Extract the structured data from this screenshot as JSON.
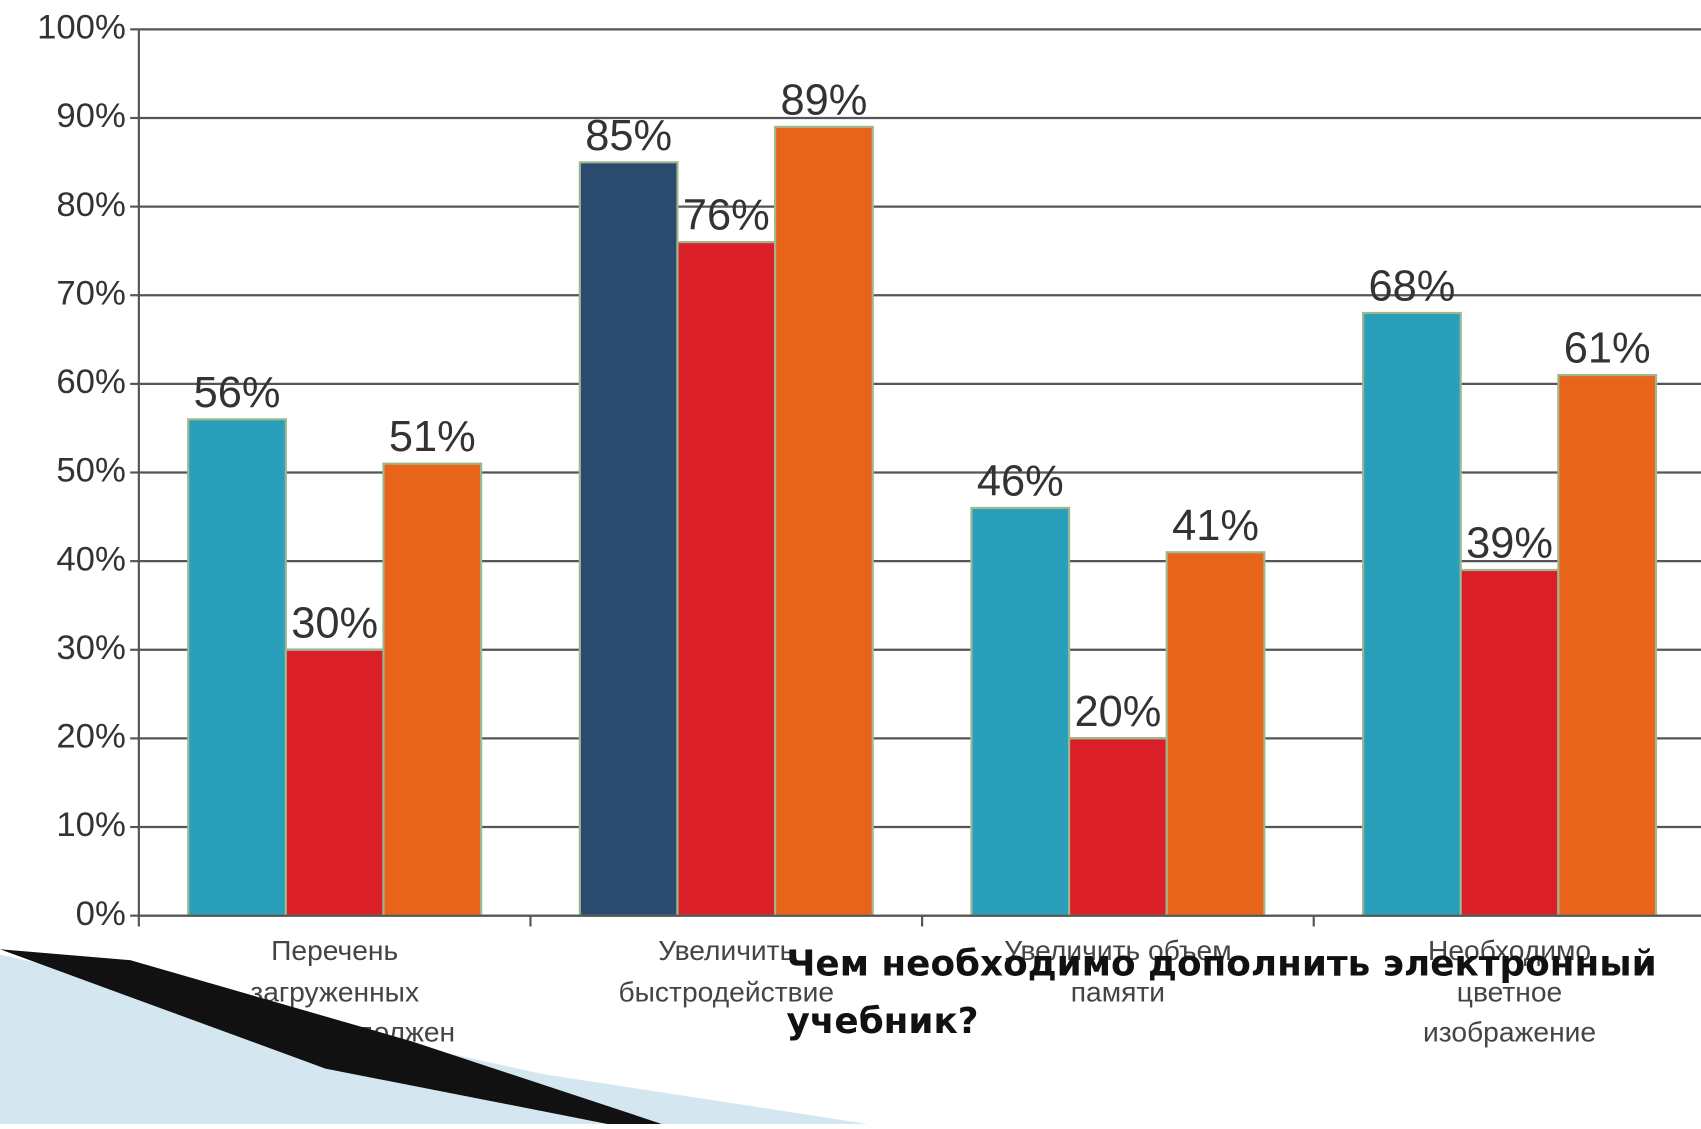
{
  "chart_data": {
    "type": "bar",
    "title": "Чем необходимо дополнить электронный учебник?",
    "categories": [
      "Перечень загруженных учебников должен соответствовать программе обучения",
      "Увеличить быстродействие",
      "Увеличить объем памяти",
      "Необходимо цветное изображение"
    ],
    "series": [
      {
        "colors": [
          "#2a9fbc",
          "#2b4a70",
          "#2a9fbc",
          "#2a9fbc"
        ],
        "values": [
          56,
          85,
          46,
          68
        ],
        "value_labels": [
          "56%",
          "85%",
          "46%",
          "68%"
        ]
      },
      {
        "color": "#da1f28",
        "values": [
          30,
          76,
          20,
          39
        ],
        "value_labels": [
          "30%",
          "76%",
          "20%",
          "39%"
        ]
      },
      {
        "color": "#e8641b",
        "values": [
          51,
          89,
          41,
          61
        ],
        "value_labels": [
          "51%",
          "89%",
          "41%",
          "61%"
        ]
      }
    ],
    "ylim": [
      0,
      100
    ],
    "yticks": [
      {
        "value": 0,
        "label": "0%"
      },
      {
        "value": 10,
        "label": "10%"
      },
      {
        "value": 20,
        "label": "20%"
      },
      {
        "value": 30,
        "label": "30%"
      },
      {
        "value": 40,
        "label": "40%"
      },
      {
        "value": 50,
        "label": "50%"
      },
      {
        "value": 60,
        "label": "60%"
      },
      {
        "value": 70,
        "label": "70%"
      },
      {
        "value": 80,
        "label": "80%"
      },
      {
        "value": 90,
        "label": "90%"
      },
      {
        "value": 100,
        "label": "100%"
      }
    ],
    "grid": true
  }
}
